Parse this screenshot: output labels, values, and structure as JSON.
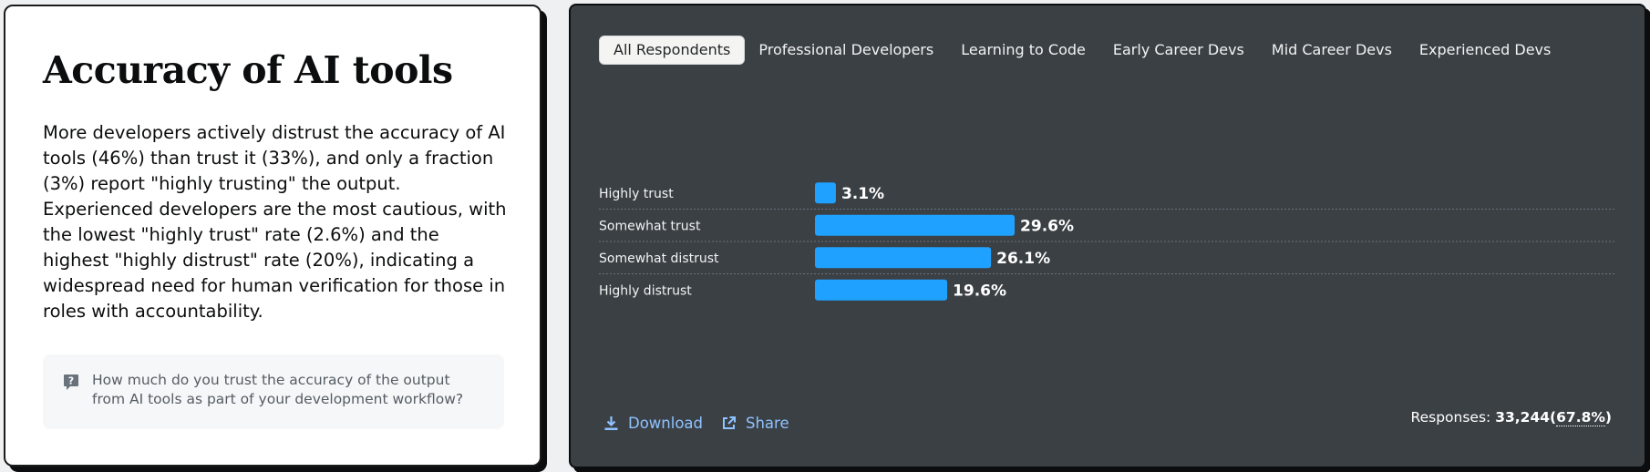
{
  "panel": {
    "title": "Accuracy of AI tools",
    "description": "More developers actively distrust the accuracy of AI tools (46%) than trust it (33%), and only a fraction (3%) report \"highly trusting\" the output. Experienced developers are the most cautious, with the lowest \"highly trust\" rate (2.6%) and the highest \"highly distrust\" rate (20%), indicating a widespread need for human verification for those in roles with accountability.",
    "question": "How much do you trust the accuracy of the output from AI tools as part of your development workflow?",
    "question_icon": "question-mark-icon"
  },
  "tabs": [
    {
      "label": "All Respondents",
      "active": true
    },
    {
      "label": "Professional Developers",
      "active": false
    },
    {
      "label": "Learning to Code",
      "active": false
    },
    {
      "label": "Early Career Devs",
      "active": false
    },
    {
      "label": "Mid Career Devs",
      "active": false
    },
    {
      "label": "Experienced Devs",
      "active": false
    }
  ],
  "footer": {
    "download_label": "Download",
    "share_label": "Share",
    "responses_label": "Responses:",
    "responses_count": "33,244",
    "responses_pct": "67.8%"
  },
  "colors": {
    "bar": "#1ea1ff",
    "panel_bg": "#3b4045",
    "link": "#8fc3ff"
  },
  "chart_data": {
    "type": "bar",
    "orientation": "horizontal",
    "categories": [
      "Highly trust",
      "Somewhat trust",
      "Somewhat distrust",
      "Highly distrust"
    ],
    "values": [
      3.1,
      29.6,
      26.1,
      19.6
    ],
    "value_labels": [
      "3.1%",
      "29.6%",
      "26.1%",
      "19.6%"
    ],
    "unit": "%",
    "xlim": [
      0,
      100
    ],
    "grid": false
  }
}
